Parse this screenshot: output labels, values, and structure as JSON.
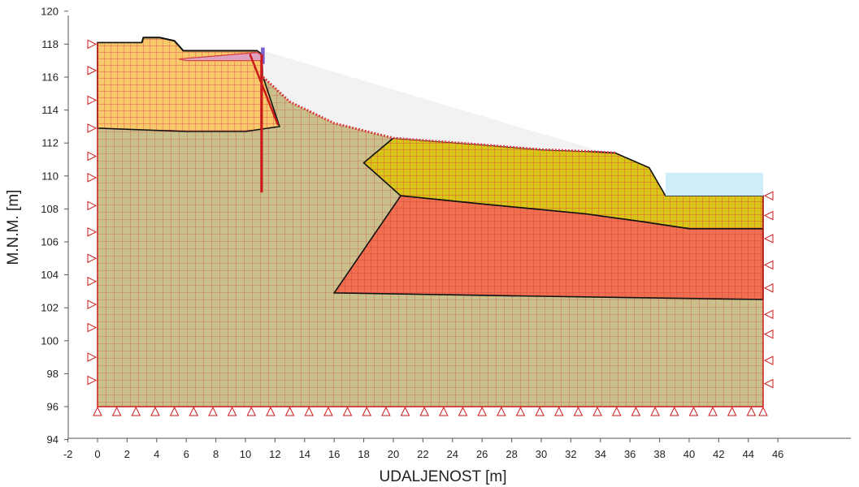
{
  "axes": {
    "x_title": "UDALJENOST [m]",
    "y_title": "M.N.M. [m]",
    "x_ticks": [
      "-2",
      "0",
      "2",
      "4",
      "6",
      "8",
      "10",
      "12",
      "14",
      "16",
      "18",
      "20",
      "22",
      "24",
      "26",
      "28",
      "30",
      "32",
      "34",
      "36",
      "38",
      "40",
      "42",
      "44",
      "46"
    ],
    "y_ticks": [
      "94",
      "96",
      "98",
      "100",
      "102",
      "104",
      "106",
      "108",
      "110",
      "112",
      "114",
      "116",
      "118",
      "120"
    ]
  },
  "colors": {
    "base_soil": "#c9c08b",
    "embankment": "#f7c96a",
    "fill_yellow": "#d9c41a",
    "fill_red": "#ef6f50",
    "mesh": "#d63c3c",
    "outline": "#111111",
    "sky_fill": "#f2f2f2",
    "water": "#cfeefa",
    "pile": "#cc1a1a",
    "wall": "#7a5fd0"
  },
  "chart_data": {
    "type": "diagram",
    "xlim": [
      -2,
      46
    ],
    "ylim": [
      94,
      120
    ],
    "regions": [
      {
        "name": "base",
        "fill": "base_soil",
        "points": [
          [
            0,
            96
          ],
          [
            45,
            96
          ],
          [
            45,
            102.5
          ],
          [
            16,
            102.9
          ],
          [
            20.5,
            108.8
          ],
          [
            18,
            110.8
          ],
          [
            20,
            112.3
          ],
          [
            33,
            111.5
          ],
          [
            35,
            111.4
          ],
          [
            37.3,
            110.5
          ],
          [
            38.4,
            108.8
          ],
          [
            40,
            108.8
          ],
          [
            45,
            108.8
          ],
          [
            45,
            106.8
          ],
          [
            40,
            106.8
          ],
          [
            37,
            107.2
          ],
          [
            33,
            107.7
          ],
          [
            20.5,
            108.8
          ],
          [
            16,
            102.9
          ],
          [
            45,
            102.5
          ],
          [
            45,
            96
          ],
          [
            0,
            96
          ]
        ]
      },
      {
        "name": "embankment",
        "fill": "embankment",
        "points": [
          [
            0,
            112.9
          ],
          [
            0,
            118.1
          ],
          [
            3,
            118.1
          ],
          [
            3.1,
            118.4
          ],
          [
            4.2,
            118.4
          ],
          [
            5.2,
            118.2
          ],
          [
            5.8,
            117.6
          ],
          [
            10.8,
            117.6
          ],
          [
            11.1,
            117.4
          ],
          [
            11.2,
            116
          ],
          [
            12.3,
            113
          ],
          [
            10,
            112.7
          ],
          [
            6,
            112.7
          ],
          [
            0,
            112.9
          ]
        ]
      },
      {
        "name": "fill-yellow",
        "fill": "fill_yellow",
        "points": [
          [
            18,
            110.8
          ],
          [
            20,
            112.3
          ],
          [
            26,
            111.9
          ],
          [
            30,
            111.6
          ],
          [
            33,
            111.5
          ],
          [
            35,
            111.4
          ],
          [
            37.3,
            110.5
          ],
          [
            38.4,
            108.8
          ],
          [
            40,
            108.8
          ],
          [
            45,
            108.8
          ],
          [
            45,
            106.8
          ],
          [
            40,
            106.8
          ],
          [
            37,
            107.2
          ],
          [
            33,
            107.7
          ],
          [
            26,
            108.3
          ],
          [
            20.5,
            108.8
          ]
        ]
      },
      {
        "name": "fill-red",
        "fill": "fill_red",
        "points": [
          [
            16,
            102.9
          ],
          [
            20.5,
            108.8
          ],
          [
            26,
            108.3
          ],
          [
            33,
            107.7
          ],
          [
            37,
            107.2
          ],
          [
            40,
            106.8
          ],
          [
            45,
            106.8
          ],
          [
            45,
            102.5
          ],
          [
            30,
            102.7
          ]
        ]
      }
    ],
    "excavated_zone": [
      [
        11.2,
        117.6
      ],
      [
        34,
        111.5
      ],
      [
        33,
        111.5
      ],
      [
        30,
        111.6
      ],
      [
        26,
        111.9
      ],
      [
        20,
        112.3
      ],
      [
        16,
        113.2
      ],
      [
        13,
        114.5
      ],
      [
        11.2,
        116
      ]
    ],
    "water": [
      [
        38.4,
        110.2
      ],
      [
        45,
        110.2
      ],
      [
        45,
        108.8
      ],
      [
        40,
        108.8
      ],
      [
        38.4,
        108.8
      ]
    ],
    "slab": [
      [
        5.5,
        117.1
      ],
      [
        10.8,
        117.5
      ],
      [
        11.1,
        117.3
      ],
      [
        11.1,
        117.0
      ],
      [
        6,
        117.0
      ]
    ],
    "wall": [
      [
        11.05,
        117.8
      ],
      [
        11.3,
        117.8
      ],
      [
        11.3,
        116.8
      ],
      [
        11.05,
        116.8
      ]
    ],
    "pile": [
      [
        11.1,
        117.4
      ],
      [
        11.1,
        109
      ]
    ],
    "strut": [
      [
        10.3,
        117.4
      ],
      [
        12.2,
        113.1
      ]
    ],
    "boundary_rect": [
      [
        0,
        96
      ],
      [
        45,
        118.1
      ]
    ],
    "left_supports_y": [
      118,
      116.4,
      114.6,
      112.9,
      111.2,
      109.9,
      108.2,
      106.6,
      105,
      103.6,
      102.2,
      100.8,
      99,
      97.6
    ],
    "right_supports_y": [
      108.8,
      107.6,
      106.2,
      104.6,
      103.2,
      101.6,
      100.4,
      98.8,
      97.4
    ],
    "bottom_supports_x": [
      0,
      1.3,
      2.6,
      3.9,
      5.2,
      6.5,
      7.8,
      9.1,
      10.4,
      11.7,
      13,
      14.3,
      15.6,
      16.9,
      18.2,
      19.5,
      20.8,
      22.1,
      23.4,
      24.7,
      26,
      27.3,
      28.6,
      29.9,
      31.2,
      32.5,
      33.8,
      35.1,
      36.4,
      37.7,
      39,
      40.3,
      41.6,
      42.9,
      44.2,
      45
    ]
  }
}
